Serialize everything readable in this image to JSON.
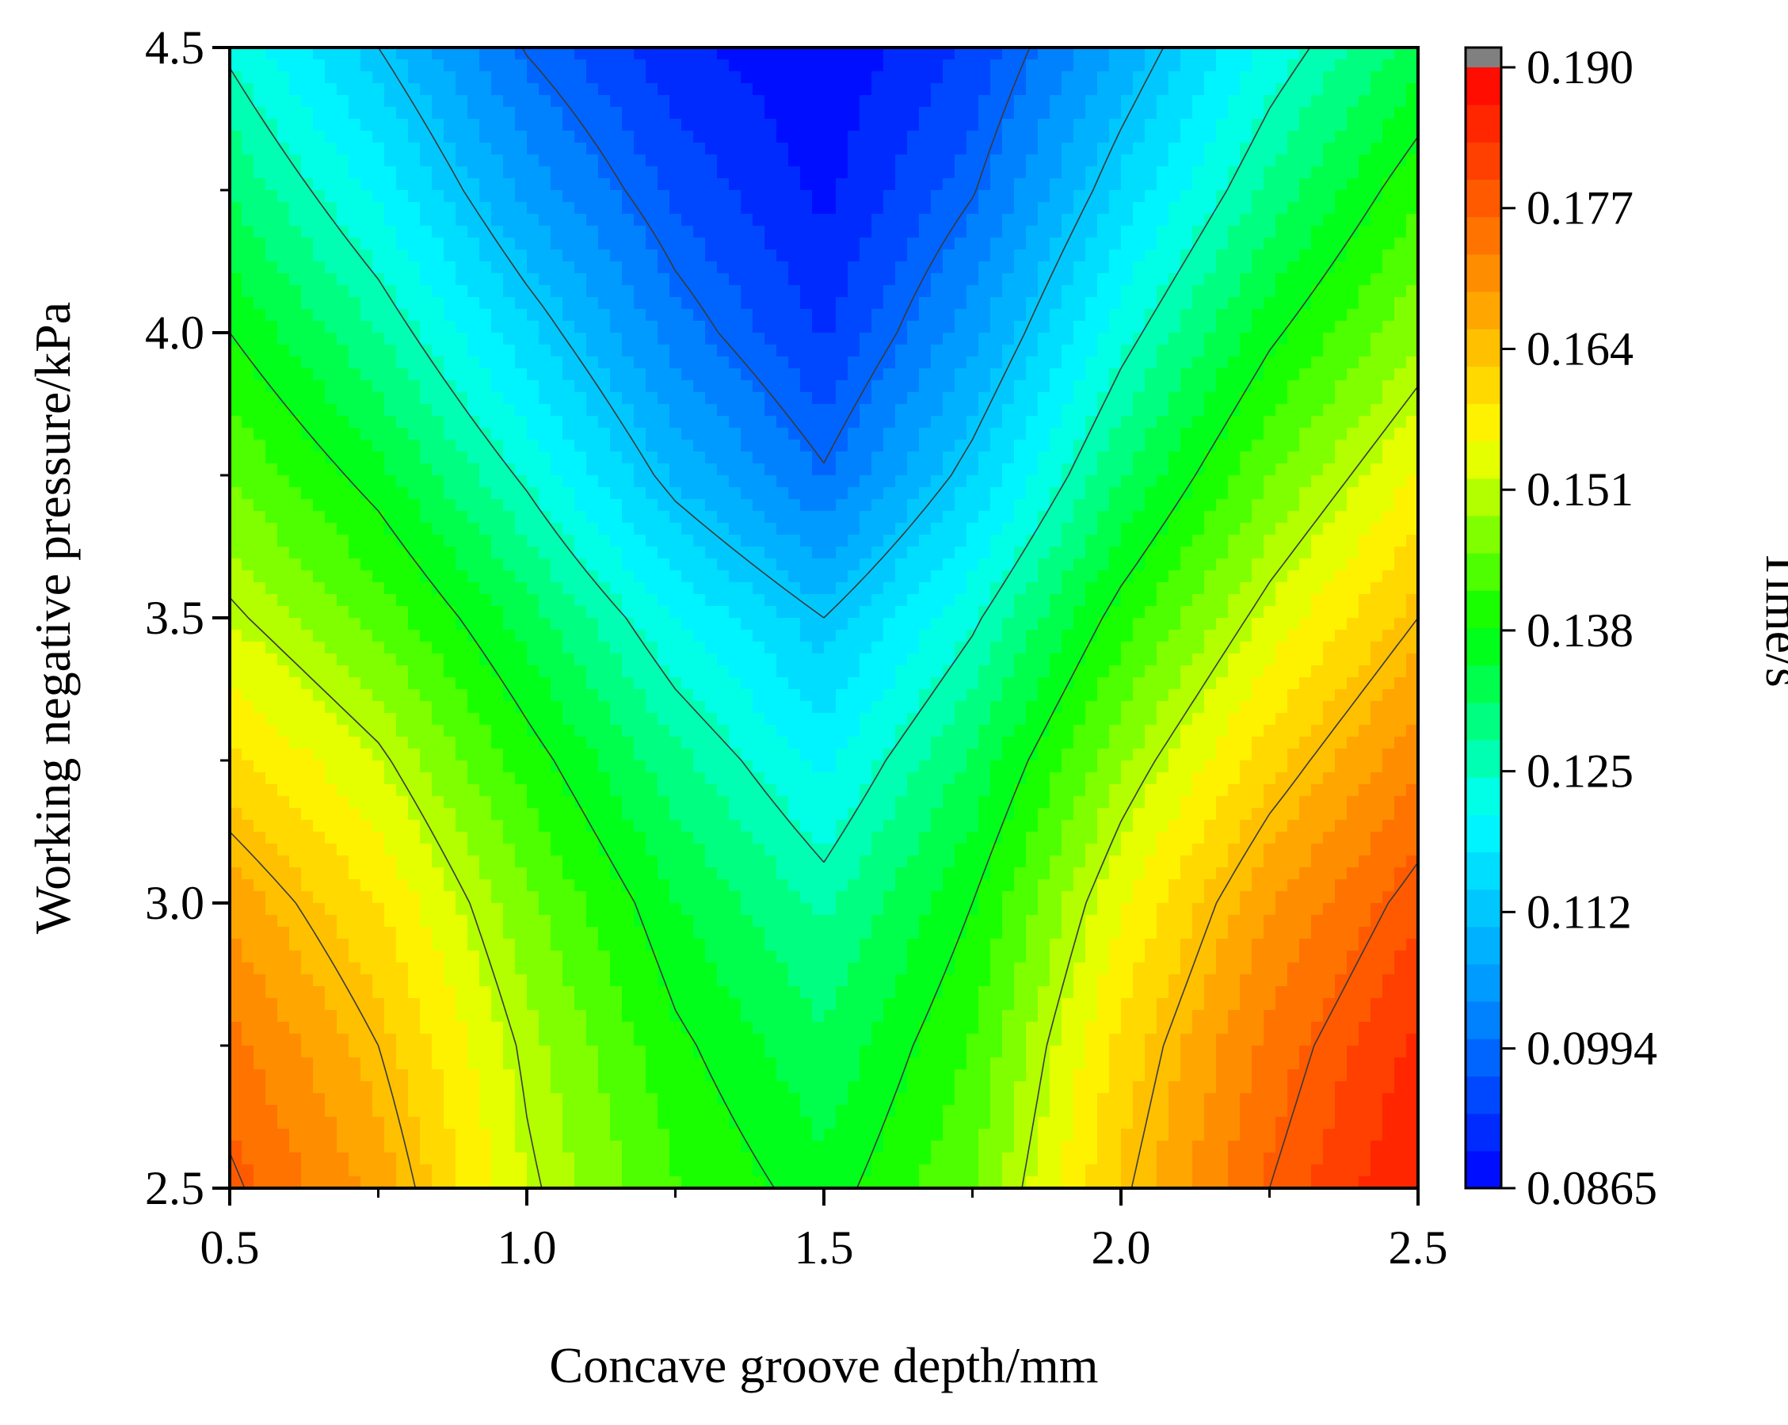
{
  "chart_data": {
    "type": "heatmap",
    "subtype": "filled-contour",
    "title": "",
    "xlabel": "Concave groove depth/mm",
    "ylabel": "Working negative pressure/kPa",
    "colorbar_label": "Time/s",
    "xlim": [
      0.5,
      2.5
    ],
    "ylim": [
      2.5,
      4.5
    ],
    "x_ticks": [
      {
        "value": 0.5,
        "label": "0.5"
      },
      {
        "value": 1.0,
        "label": "1.0"
      },
      {
        "value": 1.5,
        "label": "1.5"
      },
      {
        "value": 2.0,
        "label": "2.0"
      },
      {
        "value": 2.5,
        "label": "2.5"
      }
    ],
    "y_ticks": [
      {
        "value": 2.5,
        "label": "2.5"
      },
      {
        "value": 3.0,
        "label": "3.0"
      },
      {
        "value": 3.5,
        "label": "3.5"
      },
      {
        "value": 4.0,
        "label": "4.0"
      },
      {
        "value": 4.5,
        "label": "4.5"
      }
    ],
    "colorbar_range": [
      0.0865,
      0.19
    ],
    "colorbar_ticks": [
      {
        "value": 0.0865,
        "label": "0.0865"
      },
      {
        "value": 0.0994,
        "label": "0.0994"
      },
      {
        "value": 0.112,
        "label": "0.112"
      },
      {
        "value": 0.125,
        "label": "0.125"
      },
      {
        "value": 0.138,
        "label": "0.138"
      },
      {
        "value": 0.151,
        "label": "0.151"
      },
      {
        "value": 0.164,
        "label": "0.164"
      },
      {
        "value": 0.177,
        "label": "0.177"
      },
      {
        "value": 0.19,
        "label": "0.190"
      }
    ],
    "colormap": [
      "#0000ff",
      "#0090ff",
      "#00ffff",
      "#00ff00",
      "#ffff00",
      "#ff8000",
      "#ff0000"
    ],
    "overflow_color": "#808080",
    "contour_levels": [
      0.0994,
      0.112,
      0.125,
      0.138,
      0.151,
      0.164,
      0.177
    ],
    "x": [
      0.5,
      0.75,
      1.0,
      1.25,
      1.5,
      1.75,
      2.0,
      2.25,
      2.5
    ],
    "y": [
      2.5,
      2.75,
      3.0,
      3.25,
      3.5,
      3.75,
      4.0,
      4.25,
      4.5
    ],
    "z": [
      [
        0.178,
        0.168,
        0.152,
        0.142,
        0.136,
        0.145,
        0.163,
        0.177,
        0.187
      ],
      [
        0.174,
        0.164,
        0.15,
        0.139,
        0.132,
        0.142,
        0.16,
        0.174,
        0.184
      ],
      [
        0.168,
        0.159,
        0.146,
        0.135,
        0.127,
        0.138,
        0.155,
        0.169,
        0.179
      ],
      [
        0.16,
        0.152,
        0.14,
        0.129,
        0.12,
        0.132,
        0.148,
        0.161,
        0.172
      ],
      [
        0.152,
        0.144,
        0.133,
        0.121,
        0.112,
        0.124,
        0.14,
        0.153,
        0.164
      ],
      [
        0.145,
        0.136,
        0.124,
        0.11,
        0.1,
        0.114,
        0.131,
        0.145,
        0.156
      ],
      [
        0.138,
        0.128,
        0.115,
        0.102,
        0.093,
        0.106,
        0.123,
        0.137,
        0.148
      ],
      [
        0.131,
        0.12,
        0.106,
        0.096,
        0.089,
        0.099,
        0.115,
        0.129,
        0.141
      ],
      [
        0.124,
        0.112,
        0.099,
        0.091,
        0.087,
        0.094,
        0.108,
        0.122,
        0.133
      ]
    ]
  }
}
